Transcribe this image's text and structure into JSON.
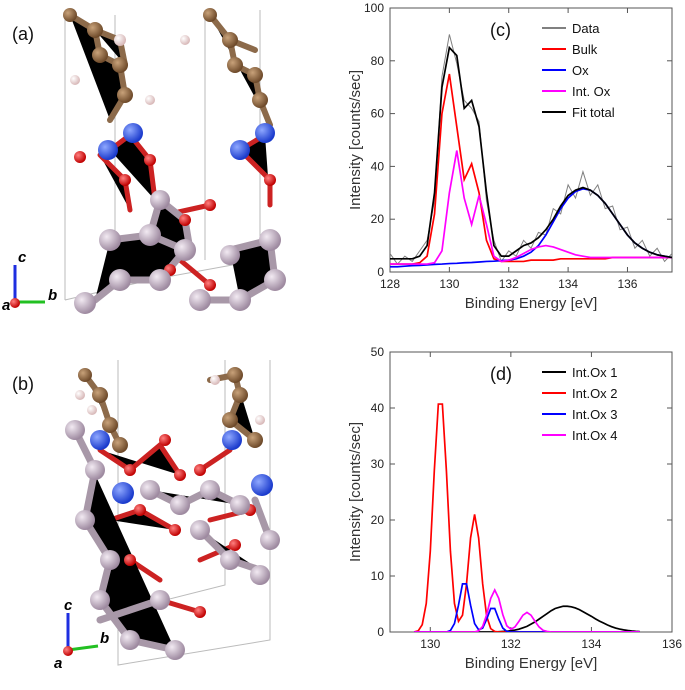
{
  "structure_panels": [
    {
      "label": "(a)",
      "axis_labels": [
        "c",
        "a",
        "b"
      ]
    },
    {
      "label": "(b)",
      "axis_labels": [
        "c",
        "a",
        "b"
      ]
    }
  ],
  "chart_data": [
    {
      "type": "line",
      "panel_label": "(c)",
      "x_label": "Binding Energy [eV]",
      "y_label": "Intensity [counts/sec]",
      "xlim": [
        128,
        137.5
      ],
      "xticks": [
        128,
        130,
        132,
        134,
        136
      ],
      "ylim": [
        0,
        100
      ],
      "yticks": [
        0,
        20,
        40,
        60,
        80,
        100
      ],
      "legend": "upper right",
      "x": [
        128,
        128.25,
        128.5,
        128.75,
        129,
        129.25,
        129.5,
        129.75,
        130,
        130.25,
        130.5,
        130.75,
        131,
        131.25,
        131.5,
        131.75,
        132,
        132.25,
        132.5,
        132.75,
        133,
        133.25,
        133.5,
        133.75,
        134,
        134.25,
        134.5,
        134.75,
        135,
        135.25,
        135.5,
        135.75,
        136,
        136.25,
        136.5,
        136.75,
        137,
        137.25,
        137.5
      ],
      "series": [
        {
          "name": "Data",
          "color": "#808080",
          "values": [
            7,
            3,
            6,
            4,
            8,
            12,
            27,
            74,
            90,
            79,
            65,
            62,
            57,
            27,
            12,
            4,
            8,
            6,
            12,
            9,
            15,
            14,
            24,
            22,
            33,
            28,
            38,
            29,
            33,
            24,
            25,
            16,
            17,
            9,
            12,
            6,
            9,
            4,
            7
          ]
        },
        {
          "name": "Bulk",
          "color": "#ff0000",
          "values": [
            3,
            3,
            3,
            3,
            3.5,
            6,
            22,
            60,
            75,
            55,
            35,
            41,
            30,
            12,
            5,
            4,
            4,
            4,
            4,
            4.5,
            4.5,
            4.5,
            4.5,
            5,
            5,
            5,
            5,
            5,
            5,
            5,
            5.5,
            5.5,
            5.5,
            5.5,
            5.5,
            5.5,
            5.5,
            5.5,
            5.5
          ]
        },
        {
          "name": "Ox",
          "color": "#0000ff",
          "values": [
            2,
            2,
            2.2,
            2.4,
            2.5,
            2.7,
            2.9,
            3,
            3.2,
            3.3,
            3.5,
            3.6,
            3.8,
            4,
            4.1,
            4.3,
            4.5,
            5,
            6,
            7.5,
            10,
            14,
            19,
            24,
            28,
            30.5,
            31.5,
            31,
            29,
            26,
            22,
            18,
            14,
            11,
            9,
            7.5,
            6.5,
            6,
            5.5
          ]
        },
        {
          "name": "Int. Ox",
          "color": "#ff00ff",
          "values": [
            3,
            3,
            3,
            3,
            3,
            3,
            3.5,
            8,
            30,
            46,
            28,
            18,
            29,
            18,
            6,
            4,
            4.5,
            5.5,
            7,
            8.5,
            9.5,
            10,
            9.5,
            8.5,
            7.5,
            6.5,
            6,
            5.5,
            5.5,
            5.5,
            5.5,
            5.5,
            5.5,
            5.5,
            5.5,
            5.5,
            5.5,
            5.5,
            5.5
          ]
        },
        {
          "name": "Fit total",
          "color": "#000000",
          "values": [
            5,
            5,
            5,
            5,
            6,
            10,
            30,
            70,
            85,
            82,
            62,
            65,
            55,
            30,
            10,
            6,
            6,
            8,
            10,
            11,
            13,
            16,
            20,
            25,
            29,
            31,
            32,
            31,
            29,
            26,
            22,
            18,
            14,
            11,
            9,
            7.5,
            6.5,
            6,
            5.5
          ]
        }
      ]
    },
    {
      "type": "line",
      "panel_label": "(d)",
      "x_label": "Binding Energy [eV]",
      "y_label": "Intensity [counts/sec]",
      "xlim": [
        129,
        136
      ],
      "xticks": [
        130,
        132,
        134,
        136
      ],
      "ylim": [
        0,
        50
      ],
      "yticks": [
        0,
        10,
        20,
        30,
        40,
        50
      ],
      "legend": "upper right",
      "x": [
        129.6,
        129.7,
        129.8,
        129.9,
        130,
        130.1,
        130.2,
        130.3,
        130.4,
        130.5,
        130.6,
        130.7,
        130.8,
        130.9,
        131,
        131.1,
        131.2,
        131.3,
        131.4,
        131.5,
        131.6,
        131.7,
        131.8,
        131.9,
        132,
        132.1,
        132.2,
        132.3,
        132.4,
        132.5,
        132.6,
        132.7,
        132.8,
        132.9,
        133,
        133.1,
        133.2,
        133.3,
        133.4,
        133.5,
        133.6,
        133.7,
        133.8,
        133.9,
        134,
        134.1,
        134.2,
        134.3,
        134.4,
        134.5,
        134.6,
        134.7,
        134.8,
        134.9,
        135,
        135.1,
        135.2
      ],
      "series": [
        {
          "name": "Int.Ox 1",
          "color": "#000000",
          "values": [
            0,
            0,
            0,
            0,
            0,
            0,
            0,
            0,
            0,
            0,
            0,
            0,
            0,
            0,
            0,
            0,
            0,
            0,
            0,
            0,
            0,
            0.05,
            0.09,
            0.14,
            0.23,
            0.35,
            0.5,
            0.75,
            1.0,
            1.4,
            1.8,
            2.3,
            2.8,
            3.3,
            3.8,
            4.2,
            4.4,
            4.6,
            4.6,
            4.5,
            4.3,
            4.0,
            3.6,
            3.2,
            2.8,
            2.35,
            1.95,
            1.6,
            1.25,
            0.95,
            0.7,
            0.53,
            0.38,
            0.27,
            0.18,
            0.12,
            0.08
          ]
        },
        {
          "name": "Int.Ox 2",
          "color": "#ff0000",
          "values": [
            0,
            0.2,
            1.3,
            5.1,
            14.4,
            28.8,
            40.7,
            40.7,
            28.8,
            14.4,
            5.1,
            1.9,
            3.0,
            8.6,
            16.8,
            21,
            16.8,
            8.6,
            2.8,
            0.6,
            0.1,
            0,
            0,
            0,
            0,
            0,
            0,
            0,
            0,
            0,
            0,
            0,
            0,
            0,
            0,
            0,
            0,
            0,
            0,
            0,
            0,
            0,
            0,
            0,
            0,
            0,
            0,
            0,
            0,
            0,
            0,
            0,
            0,
            0,
            0,
            0,
            0
          ]
        },
        {
          "name": "Int.Ox 3",
          "color": "#0000ff",
          "values": [
            0,
            0,
            0,
            0,
            0,
            0,
            0,
            0,
            0,
            0.25,
            1.5,
            4.8,
            8.6,
            8.6,
            4.8,
            1.5,
            0.4,
            0.7,
            2.3,
            4.2,
            4.2,
            2.3,
            0.7,
            0.1,
            0,
            0,
            0,
            0,
            0,
            0,
            0,
            0,
            0,
            0,
            0,
            0,
            0,
            0,
            0,
            0,
            0,
            0,
            0,
            0,
            0,
            0,
            0,
            0,
            0,
            0,
            0,
            0,
            0,
            0,
            0,
            0,
            0
          ]
        },
        {
          "name": "Int.Ox 4",
          "color": "#ff00ff",
          "values": [
            0,
            0,
            0,
            0,
            0,
            0,
            0,
            0,
            0,
            0,
            0,
            0,
            0,
            0,
            0,
            0,
            0.2,
            1.0,
            3.1,
            6.0,
            7.5,
            6.0,
            3.1,
            1.1,
            0.5,
            0.9,
            1.9,
            3.0,
            3.5,
            3.0,
            1.9,
            0.9,
            0.3,
            0.1,
            0,
            0,
            0,
            0,
            0,
            0,
            0,
            0,
            0,
            0,
            0,
            0,
            0,
            0,
            0,
            0,
            0,
            0,
            0,
            0,
            0,
            0,
            0
          ]
        }
      ]
    }
  ]
}
